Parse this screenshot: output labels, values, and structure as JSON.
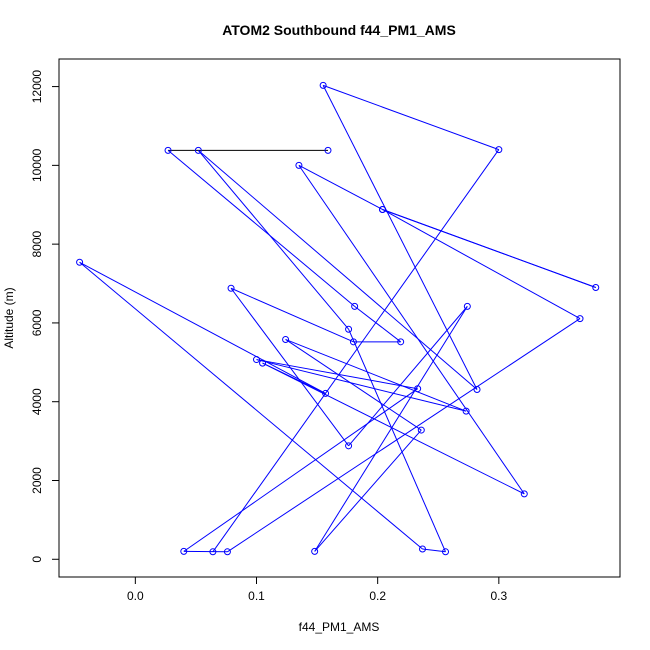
{
  "chart_data": {
    "type": "line",
    "title": "ATOM2 Southbound f44_PM1_AMS",
    "xlabel": "f44_PM1_AMS",
    "ylabel": "Altitude (m)",
    "xlim": [
      -0.063,
      0.4
    ],
    "ylim": [
      -450,
      12700
    ],
    "xticks": [
      0.0,
      0.1,
      0.2,
      0.3
    ],
    "xtick_labels": [
      "0.0",
      "0.1",
      "0.2",
      "0.3"
    ],
    "yticks": [
      0,
      2000,
      4000,
      6000,
      8000,
      10000,
      12000
    ],
    "ytick_labels": [
      "0",
      "2000",
      "4000",
      "6000",
      "8000",
      "10000",
      "12000"
    ],
    "grid": false,
    "legend": "none",
    "colors": {
      "series": "#0000ff",
      "highlight_segment": "#000000"
    },
    "series": [
      {
        "points": [
          {
            "x": 0.159,
            "y": 10380
          },
          {
            "x": 0.027,
            "y": 10380
          },
          {
            "x": 0.181,
            "y": 6420
          },
          {
            "x": 0.219,
            "y": 5520
          },
          {
            "x": 0.18,
            "y": 5520
          },
          {
            "x": 0.079,
            "y": 6880
          },
          {
            "x": 0.176,
            "y": 2880
          },
          {
            "x": 0.274,
            "y": 6420
          },
          {
            "x": 0.148,
            "y": 200
          },
          {
            "x": 0.236,
            "y": 3280
          },
          {
            "x": 0.124,
            "y": 5580
          },
          {
            "x": 0.273,
            "y": 3760
          },
          {
            "x": 0.1,
            "y": 5070
          },
          {
            "x": 0.233,
            "y": 4330
          },
          {
            "x": 0.04,
            "y": 200
          },
          {
            "x": 0.076,
            "y": 190
          },
          {
            "x": 0.367,
            "y": 6110
          },
          {
            "x": 0.204,
            "y": 8880
          },
          {
            "x": 0.38,
            "y": 6900
          },
          {
            "x": 0.204,
            "y": 8880
          },
          {
            "x": 0.135,
            "y": 10000
          },
          {
            "x": 0.321,
            "y": 1660
          },
          {
            "x": 0.105,
            "y": 4980
          },
          {
            "x": 0.157,
            "y": 4210
          },
          {
            "x": -0.046,
            "y": 7540
          },
          {
            "x": 0.237,
            "y": 260
          },
          {
            "x": 0.256,
            "y": 190
          },
          {
            "x": 0.176,
            "y": 5840
          },
          {
            "x": 0.052,
            "y": 10380
          },
          {
            "x": 0.282,
            "y": 4310
          },
          {
            "x": 0.155,
            "y": 12030
          },
          {
            "x": 0.3,
            "y": 10400
          },
          {
            "x": 0.064,
            "y": 190
          }
        ]
      }
    ]
  }
}
